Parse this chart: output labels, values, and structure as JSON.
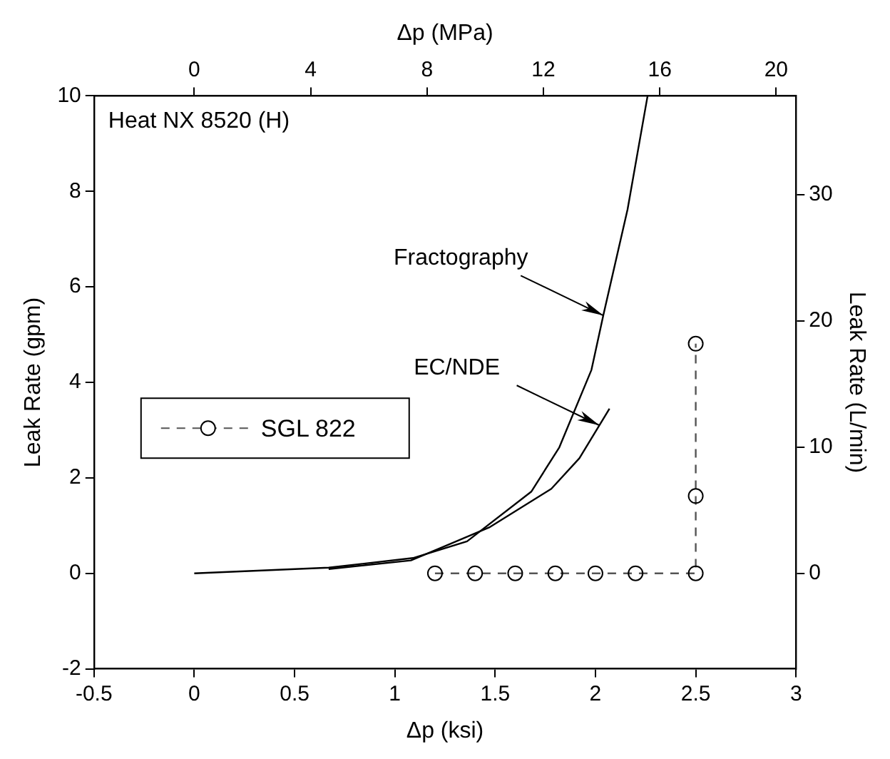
{
  "chart_data": {
    "type": "line",
    "xlabel": "Δp (ksi)",
    "x2label": "Δp (MPa)",
    "ylabel": "Leak Rate (gpm)",
    "y2label": "Leak Rate (L/min)",
    "xlim": [
      -0.5,
      3
    ],
    "xticks": [
      -0.5,
      0,
      0.5,
      1,
      1.5,
      2,
      2.5,
      3
    ],
    "x2lim": [
      -3.447,
      20.684
    ],
    "x2ticks": [
      0,
      4,
      8,
      12,
      16,
      20
    ],
    "ylim": [
      -2,
      10
    ],
    "yticks": [
      -2,
      0,
      2,
      4,
      6,
      8,
      10
    ],
    "y2lim": [
      -7.57,
      37.85
    ],
    "y2ticks": [
      0,
      10,
      20,
      30
    ],
    "grid": false,
    "legend": "left",
    "annotations": [
      "Heat NX 8520 (H)",
      {
        "text": "Fractography",
        "x": 2.04,
        "y": 5.4
      },
      {
        "text": "EC/NDE",
        "x": 2.02,
        "y": 3.1
      }
    ],
    "series": [
      {
        "color": "#000000",
        "marker": "none",
        "line_style": "solid",
        "x": [
          0,
          0.67,
          1.09,
          1.36,
          1.68,
          1.82,
          1.98,
          2.04,
          2.16,
          2.26
        ],
        "values": [
          0,
          0.12,
          0.32,
          0.67,
          1.71,
          2.64,
          4.26,
          5.42,
          7.62,
          10
        ]
      },
      {
        "color": "#000000",
        "marker": "none",
        "line_style": "solid",
        "x": [
          0.67,
          1.08,
          1.47,
          1.78,
          1.92,
          2.07
        ],
        "values": [
          0.09,
          0.27,
          0.96,
          1.77,
          2.41,
          3.45
        ]
      },
      {
        "name": "SGL 822",
        "color": "#555555",
        "marker": "circle",
        "line_style": "dashed",
        "x": [
          1.2,
          1.4,
          1.6,
          1.8,
          2.0,
          2.2,
          2.5,
          2.5,
          2.5
        ],
        "values": [
          0,
          0,
          0,
          0,
          0,
          0,
          0,
          1.62,
          4.81
        ]
      }
    ]
  }
}
